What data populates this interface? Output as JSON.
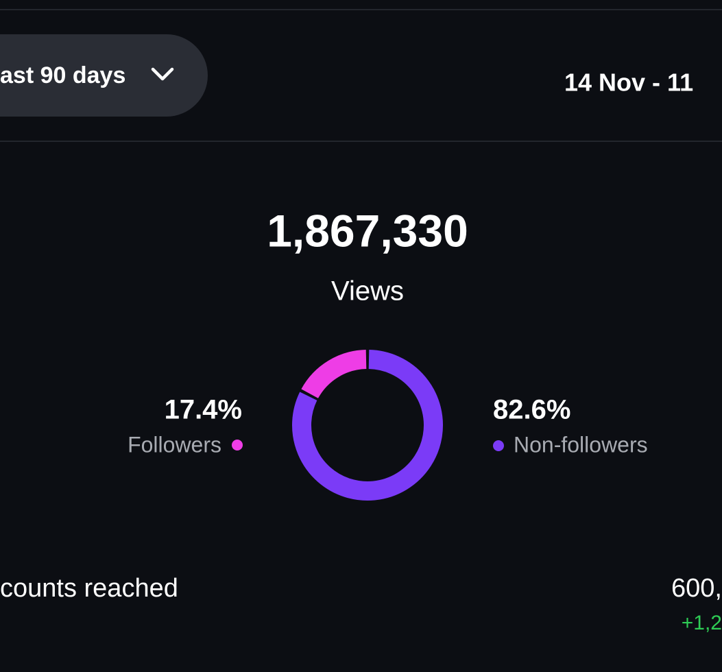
{
  "filter": {
    "label": "ast 90 days"
  },
  "date_range": "14 Nov - 11",
  "total": {
    "value": "1,867,330",
    "label": "Views"
  },
  "chart_data": {
    "type": "donut",
    "categories": [
      "Followers",
      "Non-followers"
    ],
    "values": [
      17.4,
      82.6
    ],
    "value_labels": [
      "17.4%",
      "82.6%"
    ],
    "colors": [
      "#ee3de6",
      "#7b3bf7"
    ]
  },
  "metric": {
    "label": "counts reached",
    "value": "600,",
    "change": "+1,2"
  }
}
